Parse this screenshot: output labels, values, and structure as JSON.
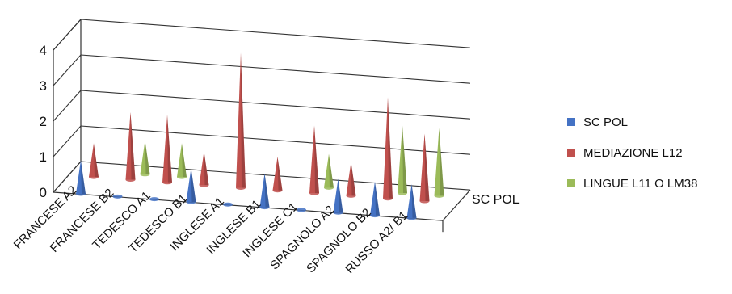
{
  "chart_data": {
    "type": "3d-cone-column",
    "categories": [
      "FRANCESE A2",
      "FRANCESE B2",
      "TEDESCO A1",
      "TEDESCO B1",
      "INGLESE A1",
      "INGLESE B1",
      "INGLESE C1",
      "SPAGNOLO A2",
      "SPAGNOLO B2",
      "RUSSO A2/ B1"
    ],
    "series": [
      {
        "name": "SC POL",
        "color": "#4472C4",
        "values": [
          1,
          0,
          0,
          1,
          0,
          1,
          0,
          1,
          1,
          1
        ]
      },
      {
        "name": "MEDIAZIONE L12",
        "color": "#C0504D",
        "values": [
          1,
          2,
          2,
          1,
          4,
          1,
          2,
          1,
          3,
          2
        ]
      },
      {
        "name": "LINGUE L11 O LM38",
        "color": "#9BBB59",
        "values": [
          null,
          1,
          1,
          null,
          null,
          null,
          1,
          null,
          2,
          2
        ]
      }
    ],
    "depth_label": "SC POL",
    "y_ticks": [
      "0",
      "1",
      "2",
      "3",
      "4"
    ],
    "ylim": [
      0,
      4
    ],
    "grid": true,
    "legend_position": "right"
  }
}
